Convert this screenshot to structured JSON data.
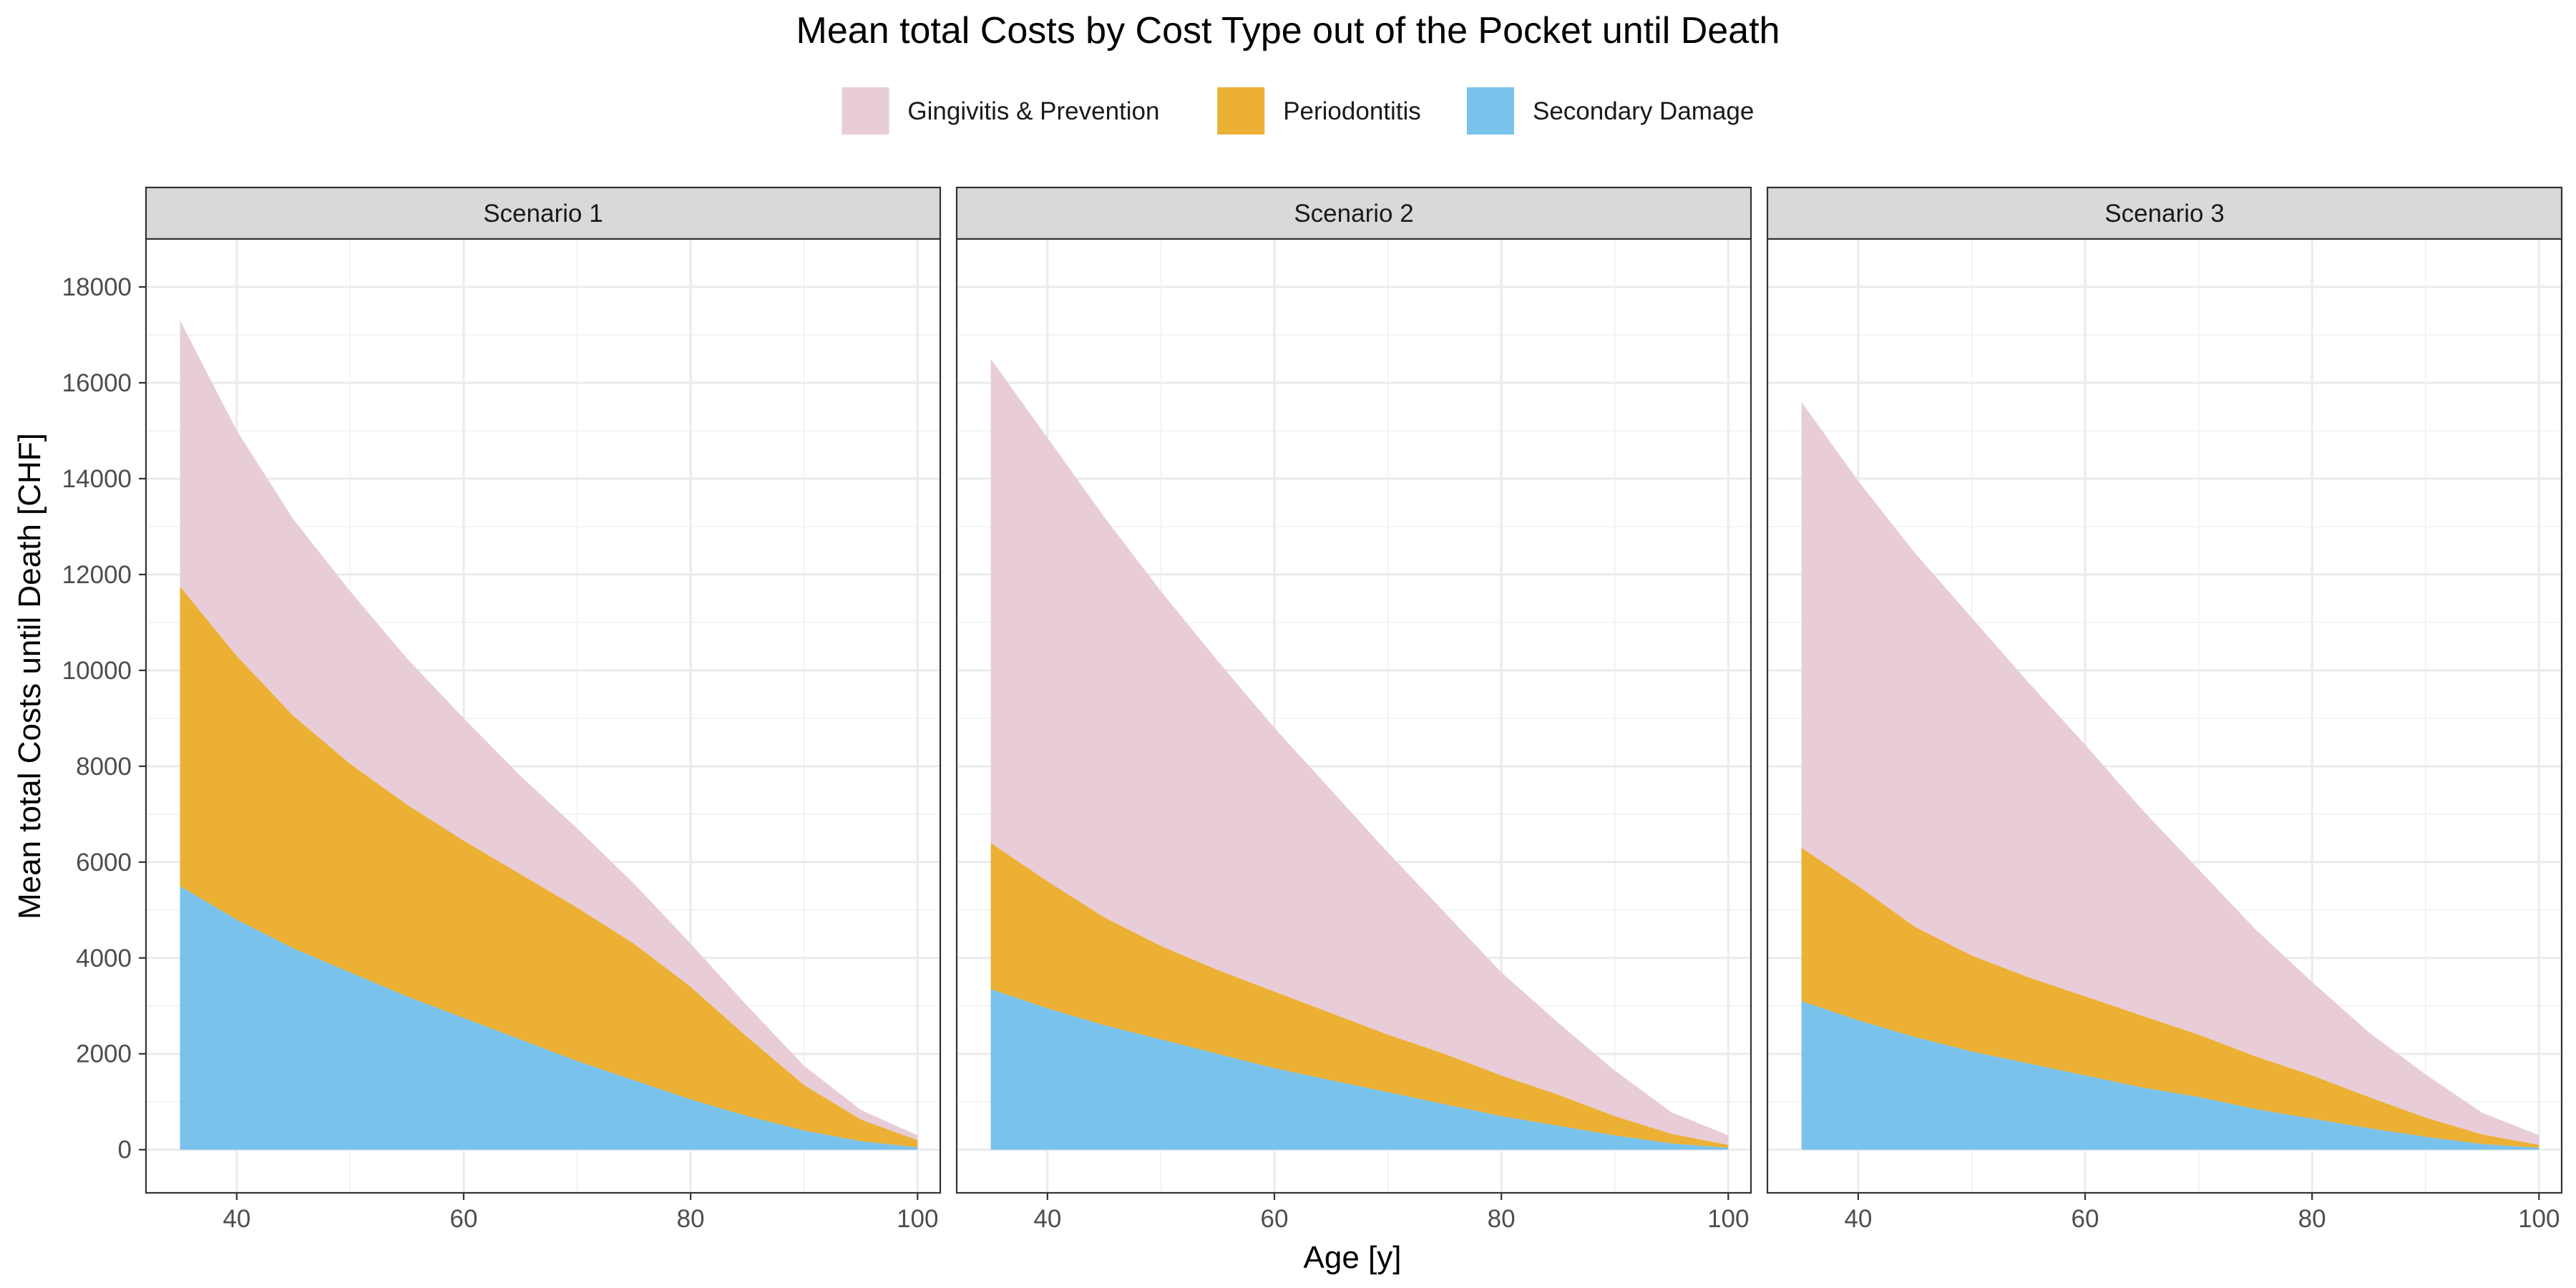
{
  "chart_data": {
    "type": "area",
    "title": "Mean total Costs by Cost Type out of the Pocket until Death",
    "xlabel": "Age [y]",
    "ylabel": "Mean total Costs until Death [CHF]",
    "xlim": [
      32,
      102
    ],
    "ylim": [
      -900,
      19000
    ],
    "x_ticks": [
      40,
      60,
      80,
      100
    ],
    "y_ticks": [
      0,
      2000,
      4000,
      6000,
      8000,
      10000,
      12000,
      14000,
      16000,
      18000
    ],
    "grid": true,
    "stacked": true,
    "legend_position": "top",
    "colors": {
      "Gingivitis & Prevention": "#E8CCD8",
      "Periodontitis": "#ECB034",
      "Secondary Damage": "#79C2EC"
    },
    "series_order": [
      "Secondary Damage",
      "Periodontitis",
      "Gingivitis & Prevention"
    ],
    "legend": [
      "Gingivitis & Prevention",
      "Periodontitis",
      "Secondary Damage"
    ],
    "x": [
      35,
      40,
      45,
      50,
      55,
      60,
      65,
      70,
      75,
      80,
      85,
      90,
      95,
      100
    ],
    "panels": [
      {
        "label": "Scenario 1",
        "series": [
          {
            "name": "Secondary Damage",
            "values": [
              5500,
              4800,
              4200,
              3700,
              3200,
              2750,
              2300,
              1850,
              1450,
              1050,
              700,
              400,
              180,
              50
            ]
          },
          {
            "name": "Periodontitis",
            "values": [
              6250,
              5500,
              4850,
              4350,
              4000,
              3700,
              3450,
              3200,
              2850,
              2350,
              1650,
              950,
              450,
              150
            ]
          },
          {
            "name": "Gingivitis & Prevention",
            "values": [
              5550,
              4700,
              4100,
              3600,
              3050,
              2550,
              2050,
              1650,
              1250,
              900,
              650,
              400,
              200,
              100
            ]
          }
        ]
      },
      {
        "label": "Scenario 2",
        "series": [
          {
            "name": "Secondary Damage",
            "values": [
              3350,
              2950,
              2600,
              2300,
              2000,
              1700,
              1450,
              1200,
              950,
              700,
              500,
              300,
              130,
              40
            ]
          },
          {
            "name": "Periodontitis",
            "values": [
              3050,
              2650,
              2250,
              1950,
              1750,
              1600,
              1400,
              1200,
              1050,
              850,
              650,
              400,
              200,
              60
            ]
          },
          {
            "name": "Gingivitis & Prevention",
            "values": [
              10100,
              9250,
              8350,
              7400,
              6450,
              5500,
              4650,
              3800,
              2950,
              2150,
              1500,
              950,
              450,
              200
            ]
          }
        ]
      },
      {
        "label": "Scenario 3",
        "series": [
          {
            "name": "Secondary Damage",
            "values": [
              3100,
              2700,
              2350,
              2050,
              1800,
              1550,
              1300,
              1100,
              850,
              650,
              450,
              270,
              120,
              40
            ]
          },
          {
            "name": "Periodontitis",
            "values": [
              3200,
              2800,
              2300,
              2000,
              1800,
              1650,
              1500,
              1300,
              1100,
              900,
              650,
              400,
              200,
              60
            ]
          },
          {
            "name": "Gingivitis & Prevention",
            "values": [
              9300,
              8450,
              7800,
              7050,
              6150,
              5250,
              4300,
              3450,
              2650,
              1950,
              1350,
              900,
              450,
              200
            ]
          }
        ]
      }
    ]
  }
}
